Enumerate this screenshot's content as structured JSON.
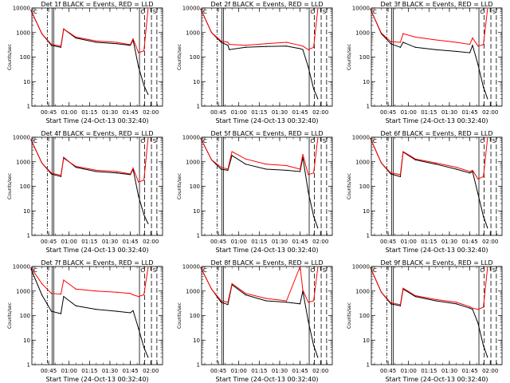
{
  "figure": {
    "background": "#ffffff",
    "axis_color": "#000000"
  },
  "chart_data": [
    {
      "type": "line",
      "detector": "1f",
      "title": "Det 1f BLACK = Events, RED = LLD",
      "xlabel": "Start Time (24-Oct-13 00:32:40)",
      "ylabel": "Counts/sec",
      "xticks": [
        "00:45",
        "01:00",
        "01:15",
        "01:30",
        "01:45",
        "02:00"
      ],
      "yticks": [
        "1",
        "10",
        "100",
        "1000",
        "10000"
      ],
      "ylim": [
        1,
        10000
      ],
      "yscale": "log",
      "markers": [
        "C",
        "S"
      ],
      "series": [
        {
          "color": "#000000",
          "x": [
            "00:32",
            "00:40",
            "00:47",
            "00:54",
            "00:56",
            "01:05",
            "01:20",
            "01:35",
            "01:45",
            "01:47",
            "01:51",
            "01:55",
            "01:58"
          ],
          "y": [
            8000,
            900,
            300,
            250,
            1400,
            600,
            400,
            350,
            300,
            500,
            40,
            7,
            3
          ]
        },
        {
          "color": "#ff0000",
          "x": [
            "00:32",
            "00:40",
            "00:47",
            "00:54",
            "00:56",
            "01:05",
            "01:20",
            "01:35",
            "01:45",
            "01:47",
            "01:51",
            "01:55",
            "01:58"
          ],
          "y": [
            8000,
            900,
            330,
            280,
            1400,
            650,
            450,
            400,
            320,
            550,
            150,
            180,
            9000
          ]
        }
      ]
    },
    {
      "type": "line",
      "detector": "2f",
      "title": "Det 2f BLACK = Events, RED = LLD",
      "xlabel": "Start Time (24-Oct-13 00:32:40)",
      "ylabel": "Counts/sec",
      "xticks": [
        "00:45",
        "01:00",
        "01:15",
        "01:30",
        "01:45",
        "02:00"
      ],
      "yticks": [
        "1",
        "10",
        "100",
        "1000",
        "10000"
      ],
      "ylim": [
        1,
        10000
      ],
      "yscale": "log",
      "markers": [
        "C",
        "S"
      ],
      "series": [
        {
          "color": "#000000",
          "x": [
            "00:32",
            "00:40",
            "00:47",
            "00:52",
            "00:53",
            "01:05",
            "01:20",
            "01:35",
            "01:45",
            "01:47",
            "01:51",
            "01:55",
            "01:58"
          ],
          "y": [
            9000,
            1000,
            400,
            300,
            200,
            250,
            270,
            280,
            220,
            200,
            40,
            5,
            2
          ]
        },
        {
          "color": "#ff0000",
          "x": [
            "00:32",
            "00:40",
            "00:47",
            "00:52",
            "00:53",
            "01:05",
            "01:20",
            "01:35",
            "01:45",
            "01:47",
            "01:51",
            "01:55",
            "01:58"
          ],
          "y": [
            9000,
            1000,
            450,
            400,
            330,
            300,
            350,
            400,
            300,
            280,
            200,
            250,
            9000
          ]
        }
      ]
    },
    {
      "type": "line",
      "detector": "3f",
      "title": "Det 3f BLACK = Events, RED = LLD",
      "xlabel": "Start Time (24-Oct-13 00:32:40)",
      "ylabel": "Counts/sec",
      "xticks": [
        "00:45",
        "01:00",
        "01:15",
        "01:30",
        "01:45",
        "02:00"
      ],
      "yticks": [
        "1",
        "10",
        "100",
        "1000",
        "10000"
      ],
      "ylim": [
        1,
        10000
      ],
      "yscale": "log",
      "markers": [
        "C",
        "S"
      ],
      "series": [
        {
          "color": "#000000",
          "x": [
            "00:32",
            "00:40",
            "00:47",
            "00:54",
            "00:56",
            "01:05",
            "01:20",
            "01:35",
            "01:45",
            "01:47",
            "01:51",
            "01:55",
            "01:58"
          ],
          "y": [
            9000,
            900,
            350,
            250,
            400,
            250,
            200,
            170,
            150,
            300,
            50,
            6,
            2
          ]
        },
        {
          "color": "#ff0000",
          "x": [
            "00:32",
            "00:40",
            "00:47",
            "00:54",
            "00:56",
            "01:05",
            "01:20",
            "01:35",
            "01:45",
            "01:47",
            "01:51",
            "01:55",
            "01:58"
          ],
          "y": [
            9000,
            950,
            420,
            400,
            900,
            650,
            500,
            400,
            330,
            600,
            280,
            320,
            9000
          ]
        }
      ]
    },
    {
      "type": "line",
      "detector": "4f",
      "title": "Det 4f BLACK = Events, RED = LLD",
      "xlabel": "Start Time (24-Oct-13 00:32:40)",
      "ylabel": "Counts/sec",
      "xticks": [
        "00:45",
        "01:00",
        "01:15",
        "01:30",
        "01:45",
        "02:00"
      ],
      "yticks": [
        "1",
        "10",
        "100",
        "1000",
        "10000"
      ],
      "ylim": [
        1,
        10000
      ],
      "yscale": "log",
      "markers": [
        "C",
        "S"
      ],
      "series": [
        {
          "color": "#000000",
          "x": [
            "00:32",
            "00:40",
            "00:47",
            "00:54",
            "00:56",
            "01:05",
            "01:20",
            "01:35",
            "01:45",
            "01:47",
            "01:51",
            "01:55",
            "01:58"
          ],
          "y": [
            8000,
            900,
            320,
            250,
            1500,
            600,
            400,
            350,
            300,
            500,
            40,
            7,
            3
          ]
        },
        {
          "color": "#ff0000",
          "x": [
            "00:32",
            "00:40",
            "00:47",
            "00:54",
            "00:56",
            "01:05",
            "01:20",
            "01:35",
            "01:45",
            "01:47",
            "01:51",
            "01:55",
            "01:58"
          ],
          "y": [
            8000,
            900,
            350,
            280,
            1400,
            650,
            450,
            400,
            320,
            550,
            150,
            180,
            9000
          ]
        }
      ]
    },
    {
      "type": "line",
      "detector": "5f",
      "title": "Det 5f BLACK = Events, RED = LLD",
      "xlabel": "Start Time (24-Oct-13 00:32:40)",
      "ylabel": "Counts/sec",
      "xticks": [
        "00:45",
        "01:00",
        "01:15",
        "01:30",
        "01:45",
        "02:00"
      ],
      "yticks": [
        "1",
        "10",
        "100",
        "1000",
        "10000"
      ],
      "ylim": [
        1,
        10000
      ],
      "yscale": "log",
      "markers": [
        "C",
        "S"
      ],
      "series": [
        {
          "color": "#000000",
          "x": [
            "00:32",
            "00:40",
            "00:47",
            "00:52",
            "00:55",
            "01:05",
            "01:20",
            "01:35",
            "01:45",
            "01:47",
            "01:51",
            "01:55",
            "01:58"
          ],
          "y": [
            9000,
            1200,
            500,
            450,
            1800,
            800,
            500,
            450,
            400,
            1500,
            60,
            6,
            2
          ]
        },
        {
          "color": "#ff0000",
          "x": [
            "00:32",
            "00:40",
            "00:47",
            "00:52",
            "00:55",
            "01:05",
            "01:20",
            "01:35",
            "01:45",
            "01:47",
            "01:51",
            "01:55",
            "01:58"
          ],
          "y": [
            9000,
            1200,
            600,
            500,
            2600,
            1300,
            800,
            700,
            500,
            2000,
            300,
            350,
            9000
          ]
        }
      ]
    },
    {
      "type": "line",
      "detector": "6f",
      "title": "Det 6f BLACK = Events, RED = LLD",
      "xlabel": "Start Time (24-Oct-13 00:32:40)",
      "ylabel": "Counts/sec",
      "xticks": [
        "00:45",
        "01:00",
        "01:15",
        "01:30",
        "01:45",
        "02:00"
      ],
      "yticks": [
        "1",
        "10",
        "100",
        "1000",
        "10000"
      ],
      "ylim": [
        1,
        10000
      ],
      "yscale": "log",
      "markers": [
        "C",
        "S"
      ],
      "series": [
        {
          "color": "#000000",
          "x": [
            "00:32",
            "00:40",
            "00:47",
            "00:54",
            "00:56",
            "01:05",
            "01:20",
            "01:35",
            "01:45",
            "01:47",
            "01:51",
            "01:55",
            "01:58"
          ],
          "y": [
            9000,
            900,
            320,
            250,
            2500,
            1200,
            800,
            500,
            350,
            400,
            50,
            6,
            2
          ]
        },
        {
          "color": "#ff0000",
          "x": [
            "00:32",
            "00:40",
            "00:47",
            "00:54",
            "00:56",
            "01:05",
            "01:20",
            "01:35",
            "01:45",
            "01:47",
            "01:51",
            "01:55",
            "01:58"
          ],
          "y": [
            9000,
            900,
            350,
            300,
            2600,
            1300,
            900,
            600,
            400,
            450,
            200,
            250,
            9000
          ]
        }
      ]
    },
    {
      "type": "line",
      "detector": "7f",
      "title": "Det 7f BLACK = Events, RED = LLD",
      "xlabel": "Start Time (24-Oct-13 00:32:40)",
      "ylabel": "Counts/sec",
      "xticks": [
        "00:45",
        "01:00",
        "01:15",
        "01:30",
        "01:45",
        "02:00"
      ],
      "yticks": [
        "1",
        "10",
        "100",
        "1000",
        "10000"
      ],
      "ylim": [
        1,
        10000
      ],
      "yscale": "log",
      "markers": [
        "C",
        "S"
      ],
      "series": [
        {
          "color": "#000000",
          "x": [
            "00:32",
            "00:40",
            "00:47",
            "00:54",
            "00:56",
            "01:05",
            "01:20",
            "01:35",
            "01:45",
            "01:47",
            "01:51",
            "01:55",
            "01:58"
          ],
          "y": [
            8000,
            700,
            150,
            120,
            600,
            250,
            180,
            150,
            130,
            160,
            30,
            5,
            2
          ]
        },
        {
          "color": "#ff0000",
          "x": [
            "00:32",
            "00:40",
            "00:47",
            "00:54",
            "00:56",
            "01:05",
            "01:20",
            "01:35",
            "01:45",
            "01:47",
            "01:51",
            "01:55",
            "01:58"
          ],
          "y": [
            9000,
            2000,
            800,
            750,
            2800,
            1200,
            1000,
            900,
            800,
            700,
            600,
            700,
            9000
          ]
        }
      ]
    },
    {
      "type": "line",
      "detector": "8f",
      "title": "Det 8f BLACK = Events, RED = LLD",
      "xlabel": "Start Time (24-Oct-13 00:32:40)",
      "ylabel": "Counts/sec",
      "xticks": [
        "00:45",
        "01:00",
        "01:15",
        "01:30",
        "01:45",
        "02:00"
      ],
      "yticks": [
        "1",
        "10",
        "100",
        "1000",
        "10000"
      ],
      "ylim": [
        1,
        10000
      ],
      "yscale": "log",
      "markers": [
        "C",
        "S"
      ],
      "series": [
        {
          "color": "#000000",
          "x": [
            "00:32",
            "00:40",
            "00:47",
            "00:52",
            "00:55",
            "01:05",
            "01:20",
            "01:35",
            "01:45",
            "01:47",
            "01:51",
            "01:55",
            "01:58"
          ],
          "y": [
            9000,
            1200,
            350,
            280,
            1800,
            700,
            400,
            350,
            300,
            1000,
            60,
            6,
            2
          ]
        },
        {
          "color": "#ff0000",
          "x": [
            "00:32",
            "00:40",
            "00:47",
            "00:52",
            "00:55",
            "01:05",
            "01:20",
            "01:35",
            "01:45",
            "01:47",
            "01:51",
            "01:55",
            "01:58"
          ],
          "y": [
            9000,
            1200,
            400,
            350,
            2000,
            800,
            500,
            400,
            10000,
            1100,
            350,
            400,
            9000
          ]
        }
      ]
    },
    {
      "type": "line",
      "detector": "9f",
      "title": "Det 9f BLACK = Events, RED = LLD",
      "xlabel": "Start Time (24-Oct-13 00:32:40)",
      "ylabel": "Counts/sec",
      "xticks": [
        "00:45",
        "01:00",
        "01:15",
        "01:30",
        "01:45",
        "02:00"
      ],
      "yticks": [
        "1",
        "10",
        "100",
        "1000",
        "10000"
      ],
      "ylim": [
        1,
        10000
      ],
      "yscale": "log",
      "markers": [
        "C",
        "S"
      ],
      "series": [
        {
          "color": "#000000",
          "x": [
            "00:32",
            "00:40",
            "00:47",
            "00:54",
            "00:56",
            "01:05",
            "01:20",
            "01:35",
            "01:45",
            "01:47",
            "01:51",
            "01:55",
            "01:58"
          ],
          "y": [
            9000,
            900,
            300,
            250,
            1200,
            600,
            400,
            300,
            200,
            180,
            50,
            6,
            2
          ]
        },
        {
          "color": "#ff0000",
          "x": [
            "00:32",
            "00:40",
            "00:47",
            "00:54",
            "00:56",
            "01:05",
            "01:20",
            "01:35",
            "01:45",
            "01:47",
            "01:51",
            "01:55",
            "01:58"
          ],
          "y": [
            9000,
            900,
            330,
            280,
            1300,
            650,
            450,
            350,
            230,
            200,
            180,
            220,
            9000
          ]
        }
      ]
    }
  ]
}
